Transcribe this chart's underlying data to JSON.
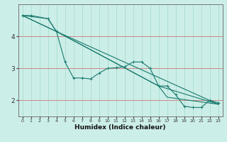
{
  "title": "",
  "xlabel": "Humidex (Indice chaleur)",
  "bg_color": "#cceee8",
  "line_color": "#1a7a6e",
  "grid_color_v": "#aaddcc",
  "grid_color_h": "#cc8888",
  "xlim": [
    -0.5,
    23.5
  ],
  "ylim": [
    1.5,
    5.0
  ],
  "yticks": [
    2,
    3,
    4
  ],
  "xticks": [
    0,
    1,
    2,
    3,
    4,
    5,
    6,
    7,
    8,
    9,
    10,
    11,
    12,
    13,
    14,
    15,
    16,
    17,
    18,
    19,
    20,
    21,
    22,
    23
  ],
  "line1_x": [
    0,
    1,
    3,
    4,
    5,
    6,
    7,
    8,
    9,
    10,
    11,
    12,
    13,
    14,
    15,
    16,
    17,
    18,
    19,
    20,
    21,
    22,
    23
  ],
  "line1_y": [
    4.65,
    4.65,
    4.55,
    4.15,
    3.2,
    2.7,
    2.7,
    2.67,
    2.85,
    3.0,
    3.02,
    3.05,
    3.2,
    3.2,
    3.0,
    2.45,
    2.45,
    2.18,
    1.82,
    1.78,
    1.78,
    2.0,
    1.93
  ],
  "line2_x": [
    0,
    4,
    23
  ],
  "line2_y": [
    4.65,
    4.15,
    1.88
  ],
  "line3_x": [
    0,
    4,
    16,
    23
  ],
  "line3_y": [
    4.65,
    4.15,
    2.45,
    1.88
  ],
  "line4_x": [
    0,
    3,
    4,
    16,
    17,
    23
  ],
  "line4_y": [
    4.65,
    4.55,
    4.15,
    2.45,
    2.1,
    1.88
  ]
}
